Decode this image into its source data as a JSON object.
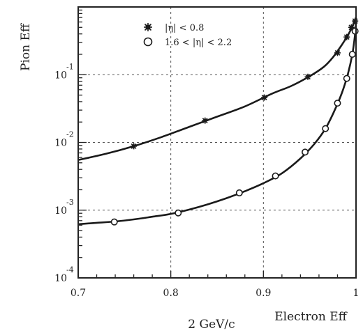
{
  "chart_data": {
    "type": "scatter",
    "xlabel": "Electron Eff",
    "ylabel": "Pion Eff",
    "footnote": "2 GeV/c",
    "log_y": true,
    "grid": true,
    "legend_position": "top-center",
    "xlim": [
      0.7,
      1.0
    ],
    "ylim": [
      0.0001,
      1
    ],
    "x_ticks": [
      0.7,
      0.8,
      0.9,
      1.0
    ],
    "x_tick_labels": [
      "0.7",
      "0.8",
      "0.9",
      "1"
    ],
    "y_tick_mantissa": [
      "10",
      "10",
      "10",
      "10"
    ],
    "y_tick_exponents": [
      "-1",
      "-2",
      "-3",
      "-4"
    ],
    "y_tick_values": [
      0.1,
      0.01,
      0.001,
      0.0001
    ],
    "series": [
      {
        "name": "|η| < 0.8",
        "marker": "star",
        "x": [
          0.76,
          0.837,
          0.901,
          0.948,
          0.98,
          0.99,
          0.995,
          0.999
        ],
        "y": [
          0.0088,
          0.021,
          0.046,
          0.093,
          0.21,
          0.36,
          0.5,
          0.62
        ]
      },
      {
        "name": "1.6 < |η| < 2.2",
        "marker": "circle",
        "x": [
          0.739,
          0.808,
          0.874,
          0.913,
          0.945,
          0.967,
          0.98,
          0.99,
          0.996,
          0.999
        ],
        "y": [
          0.00067,
          0.00091,
          0.0018,
          0.0032,
          0.0072,
          0.016,
          0.038,
          0.088,
          0.2,
          0.44
        ]
      }
    ],
    "curves": [
      {
        "x": [
          0.7,
          0.73,
          0.76,
          0.79,
          0.82,
          0.85,
          0.88,
          0.91,
          0.93,
          0.95,
          0.965,
          0.975,
          0.985,
          0.992,
          0.997,
          1.0
        ],
        "y": [
          0.0055,
          0.0068,
          0.0088,
          0.012,
          0.017,
          0.024,
          0.034,
          0.053,
          0.068,
          0.095,
          0.13,
          0.18,
          0.28,
          0.4,
          0.55,
          0.7
        ]
      },
      {
        "x": [
          0.7,
          0.72,
          0.74,
          0.76,
          0.78,
          0.8,
          0.82,
          0.84,
          0.86,
          0.88,
          0.9,
          0.92,
          0.94,
          0.955,
          0.967,
          0.977,
          0.985,
          0.991,
          0.996,
          0.999,
          1.0
        ],
        "y": [
          0.00062,
          0.00065,
          0.00068,
          0.00073,
          0.0008,
          0.00088,
          0.00102,
          0.00122,
          0.0015,
          0.0019,
          0.0025,
          0.0035,
          0.0058,
          0.0095,
          0.016,
          0.03,
          0.055,
          0.1,
          0.2,
          0.4,
          0.6
        ]
      }
    ]
  }
}
